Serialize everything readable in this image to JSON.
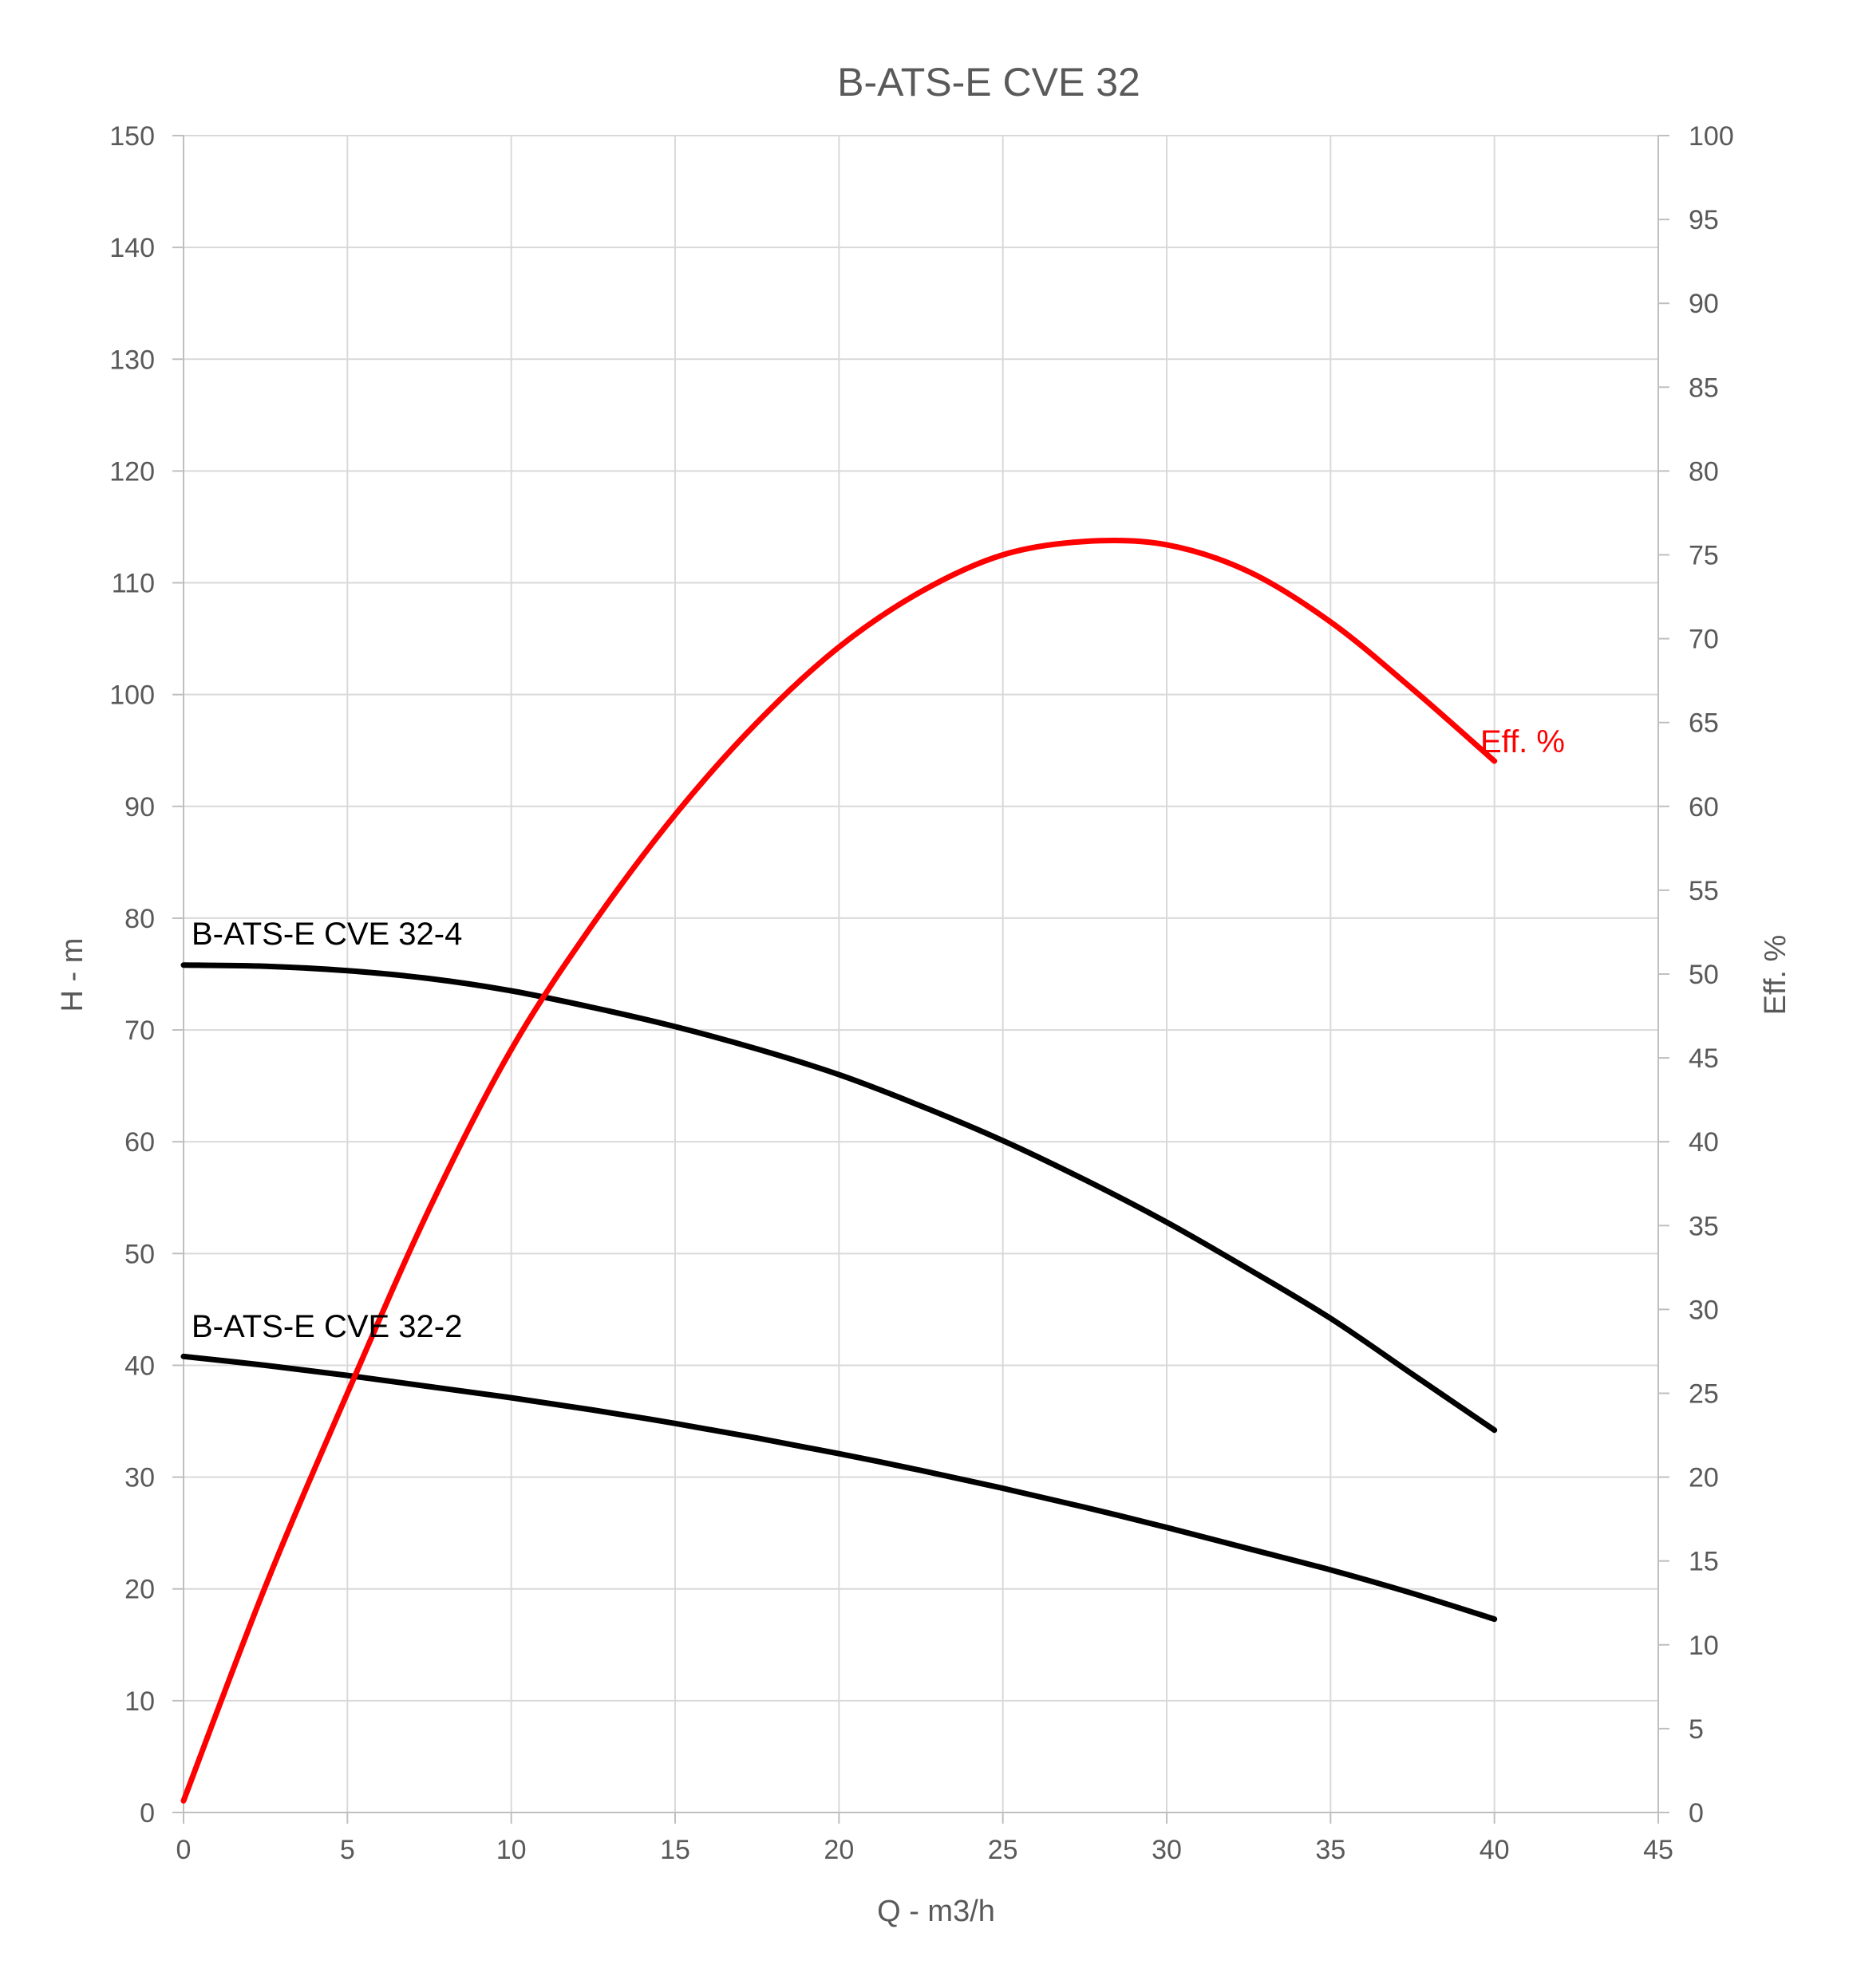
{
  "chart_data": {
    "type": "line",
    "title": "B-ATS-E CVE 32",
    "xlabel": "Q - m3/h",
    "ylabel": "H - m",
    "y2label": "Eff. %",
    "xlim": [
      0,
      45
    ],
    "ylim": [
      0,
      150
    ],
    "y2lim": [
      0,
      100
    ],
    "x_ticks": [
      0,
      5,
      10,
      15,
      20,
      25,
      30,
      35,
      40,
      45
    ],
    "y_ticks": [
      0,
      10,
      20,
      30,
      40,
      50,
      60,
      70,
      80,
      90,
      100,
      110,
      120,
      130,
      140,
      150
    ],
    "y2_ticks": [
      0,
      5,
      10,
      15,
      20,
      25,
      30,
      35,
      40,
      45,
      50,
      55,
      60,
      65,
      70,
      75,
      80,
      85,
      90,
      95,
      100
    ],
    "grid": true,
    "series": [
      {
        "name": "B-ATS-E CVE 32-4",
        "axis": "left",
        "color": "#000000",
        "x": [
          0,
          2.5,
          5,
          7.5,
          10,
          12.5,
          15,
          17.5,
          20,
          22.5,
          25,
          27.5,
          30,
          32.5,
          35,
          37.5,
          40
        ],
        "y": [
          75.8,
          75.7,
          75.3,
          74.6,
          73.5,
          72.0,
          70.3,
          68.3,
          66.0,
          63.2,
          60.1,
          56.6,
          52.8,
          48.6,
          44.2,
          39.2,
          34.2
        ]
      },
      {
        "name": "B-ATS-E CVE 32-2",
        "axis": "left",
        "color": "#000000",
        "x": [
          0,
          2.5,
          5,
          7.5,
          10,
          12.5,
          15,
          17.5,
          20,
          22.5,
          25,
          27.5,
          30,
          32.5,
          35,
          37.5,
          40
        ],
        "y": [
          40.8,
          40.0,
          39.1,
          38.1,
          37.1,
          36.0,
          34.8,
          33.5,
          32.1,
          30.6,
          29.0,
          27.3,
          25.5,
          23.6,
          21.7,
          19.6,
          17.3
        ]
      },
      {
        "name": "Eff. %",
        "axis": "right",
        "color": "#ff0000",
        "x": [
          0,
          2.5,
          5,
          7.5,
          10,
          12.5,
          15,
          17.5,
          20,
          22.5,
          25,
          27.5,
          30,
          32.5,
          35,
          37.5,
          40
        ],
        "y": [
          0.7,
          13.5,
          25.0,
          36.0,
          45.5,
          53.0,
          59.5,
          65.0,
          69.5,
          72.8,
          75.0,
          75.8,
          75.6,
          74.0,
          71.0,
          67.0,
          62.7
        ]
      }
    ]
  }
}
